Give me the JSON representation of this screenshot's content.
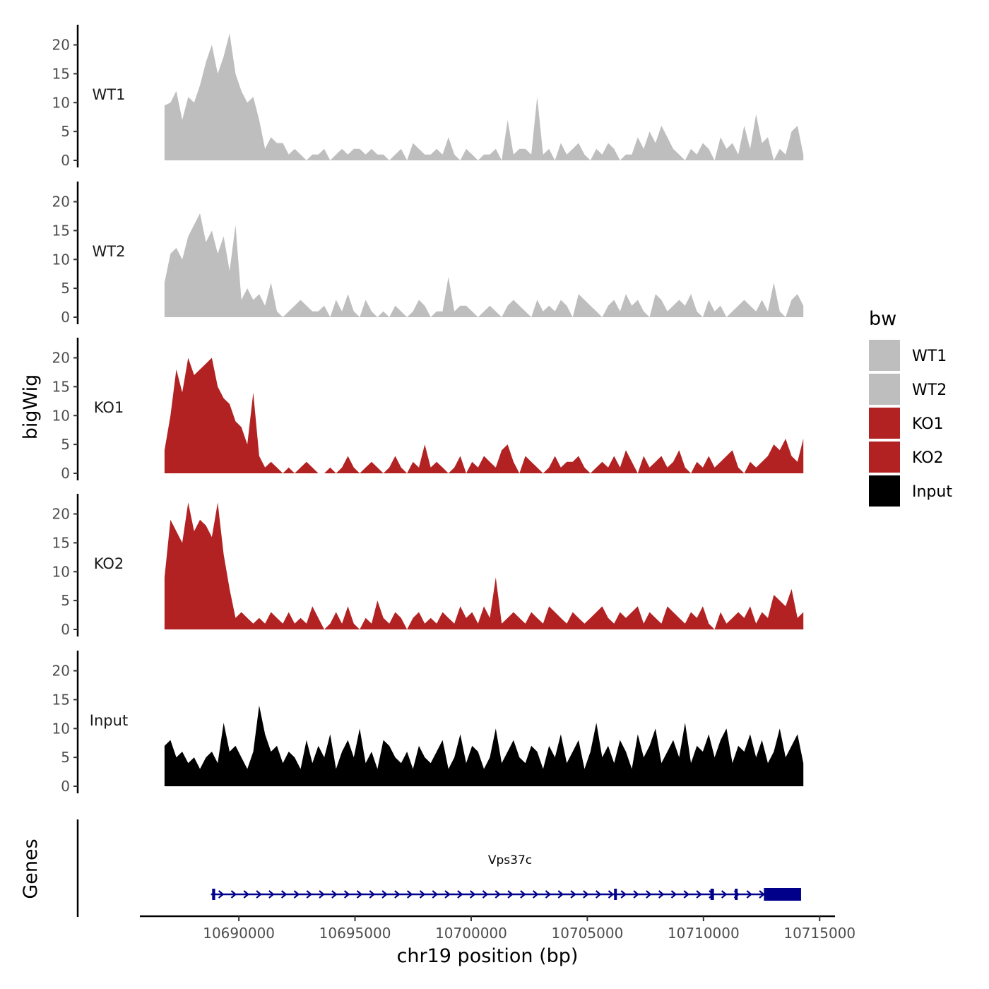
{
  "chart_data": {
    "type": "area",
    "ylabel": "bigWig",
    "xlabel": "chr19 position (bp)",
    "ylim": [
      0,
      23
    ],
    "y_ticks": [
      0,
      5,
      10,
      15,
      20
    ],
    "x_range": [
      10685800,
      10715600
    ],
    "x_ticks": [
      10690000,
      10695000,
      10700000,
      10705000,
      10710000,
      10715000
    ],
    "x_tick_labels": [
      "10690000",
      "10695000",
      "10700000",
      "10705000",
      "10710000",
      "10715000"
    ],
    "data_x_start": 10686800,
    "data_x_end": 10714300,
    "legend": {
      "title": "bw",
      "position": "right",
      "entries": [
        {
          "label": "WT1",
          "color": "#bebebe"
        },
        {
          "label": "WT2",
          "color": "#bebebe"
        },
        {
          "label": "KO1",
          "color": "#b22222"
        },
        {
          "label": "KO2",
          "color": "#b22222"
        },
        {
          "label": "Input",
          "color": "#000000"
        }
      ]
    },
    "series": [
      {
        "name": "WT1",
        "color": "#bebebe",
        "values": [
          9.5,
          10,
          12,
          7,
          11,
          10,
          13,
          17,
          20,
          15,
          18,
          22,
          15,
          12,
          10,
          11,
          7,
          2,
          4,
          3,
          3,
          1,
          2,
          1,
          0,
          1,
          1,
          2,
          0,
          1,
          2,
          1,
          2,
          2,
          1,
          2,
          1,
          1,
          0,
          1,
          2,
          0,
          3,
          2,
          1,
          1,
          2,
          1,
          4,
          1,
          0,
          2,
          1,
          0,
          1,
          1,
          2,
          0,
          7,
          1,
          2,
          2,
          1,
          11,
          1,
          2,
          0,
          3,
          1,
          2,
          3,
          1,
          0,
          2,
          1,
          3,
          2,
          0,
          1,
          1,
          4,
          2,
          5,
          3,
          6,
          4,
          2,
          1,
          0,
          2,
          1,
          3,
          2,
          0,
          4,
          2,
          3,
          1,
          6,
          2,
          8,
          3,
          4,
          0,
          2,
          1,
          5,
          6,
          1
        ]
      },
      {
        "name": "WT2",
        "color": "#bebebe",
        "values": [
          6,
          11,
          12,
          10,
          14,
          16,
          18,
          13,
          15,
          11,
          14,
          8,
          16,
          3,
          5,
          3,
          4,
          2,
          6,
          1,
          0,
          1,
          2,
          3,
          2,
          1,
          1,
          2,
          0,
          3,
          1,
          4,
          1,
          0,
          3,
          1,
          0,
          1,
          0,
          2,
          1,
          0,
          1,
          3,
          2,
          0,
          1,
          1,
          7,
          1,
          2,
          2,
          1,
          0,
          1,
          2,
          1,
          0,
          2,
          3,
          2,
          1,
          0,
          3,
          1,
          2,
          1,
          3,
          2,
          0,
          4,
          3,
          2,
          1,
          0,
          2,
          3,
          1,
          4,
          2,
          3,
          1,
          0,
          4,
          3,
          1,
          2,
          3,
          2,
          4,
          1,
          0,
          3,
          1,
          2,
          0,
          1,
          2,
          3,
          2,
          1,
          3,
          1,
          6,
          1,
          0,
          3,
          4,
          2
        ]
      },
      {
        "name": "KO1",
        "color": "#b22222",
        "values": [
          4,
          10,
          18,
          14,
          20,
          17,
          18,
          19,
          20,
          15,
          13,
          12,
          9,
          8,
          5,
          14,
          3,
          1,
          2,
          1,
          0,
          1,
          0,
          1,
          2,
          1,
          0,
          0,
          1,
          0,
          1,
          3,
          1,
          0,
          1,
          2,
          1,
          0,
          1,
          3,
          1,
          0,
          2,
          1,
          5,
          1,
          2,
          1,
          0,
          1,
          3,
          0,
          2,
          1,
          3,
          2,
          1,
          4,
          5,
          2,
          0,
          3,
          2,
          1,
          0,
          1,
          3,
          1,
          2,
          2,
          3,
          1,
          0,
          1,
          2,
          1,
          3,
          1,
          4,
          2,
          0,
          3,
          1,
          2,
          3,
          1,
          2,
          4,
          1,
          0,
          2,
          1,
          3,
          1,
          2,
          3,
          4,
          1,
          0,
          2,
          1,
          2,
          3,
          5,
          4,
          6,
          3,
          2,
          6
        ]
      },
      {
        "name": "KO2",
        "color": "#b22222",
        "values": [
          9,
          19,
          17,
          15,
          22,
          17,
          19,
          18,
          16,
          22,
          13,
          7,
          2,
          3,
          2,
          1,
          2,
          1,
          3,
          2,
          1,
          3,
          1,
          2,
          1,
          4,
          2,
          0,
          1,
          3,
          1,
          4,
          1,
          0,
          2,
          1,
          5,
          2,
          1,
          3,
          2,
          0,
          2,
          3,
          1,
          2,
          1,
          3,
          2,
          1,
          4,
          2,
          3,
          1,
          4,
          2,
          9,
          1,
          2,
          3,
          2,
          1,
          3,
          2,
          1,
          4,
          3,
          2,
          1,
          3,
          2,
          1,
          2,
          3,
          4,
          2,
          1,
          3,
          2,
          3,
          4,
          1,
          3,
          2,
          1,
          4,
          3,
          2,
          1,
          3,
          2,
          4,
          1,
          0,
          3,
          1,
          2,
          3,
          2,
          4,
          1,
          3,
          2,
          6,
          5,
          4,
          7,
          2,
          3
        ]
      },
      {
        "name": "Input",
        "color": "#000000",
        "values": [
          7,
          8,
          5,
          6,
          4,
          5,
          3,
          5,
          6,
          4,
          11,
          6,
          7,
          5,
          3,
          6,
          14,
          9,
          6,
          7,
          4,
          6,
          5,
          3,
          8,
          4,
          7,
          5,
          9,
          3,
          6,
          8,
          5,
          10,
          4,
          6,
          3,
          8,
          7,
          5,
          4,
          6,
          3,
          7,
          5,
          4,
          6,
          8,
          3,
          5,
          9,
          4,
          7,
          6,
          3,
          5,
          10,
          4,
          6,
          8,
          5,
          4,
          7,
          6,
          3,
          7,
          5,
          9,
          4,
          6,
          8,
          3,
          6,
          11,
          5,
          7,
          4,
          8,
          6,
          3,
          9,
          5,
          7,
          10,
          4,
          6,
          8,
          5,
          11,
          4,
          7,
          6,
          9,
          5,
          8,
          10,
          4,
          7,
          6,
          9,
          5,
          8,
          4,
          6,
          10,
          5,
          7,
          9,
          4
        ]
      }
    ],
    "genes_track": {
      "label": "Genes",
      "gene_name": "Vps37c",
      "start": 10688800,
      "end": 10714200,
      "strand": "+",
      "exons": [
        {
          "start": 10688850,
          "end": 10688980,
          "type": "utr"
        },
        {
          "start": 10706150,
          "end": 10706250,
          "type": "utr"
        },
        {
          "start": 10710300,
          "end": 10710450,
          "type": "utr"
        },
        {
          "start": 10711350,
          "end": 10711450,
          "type": "utr"
        },
        {
          "start": 10712600,
          "end": 10714200,
          "type": "cds"
        }
      ],
      "color": "#00008b"
    }
  }
}
